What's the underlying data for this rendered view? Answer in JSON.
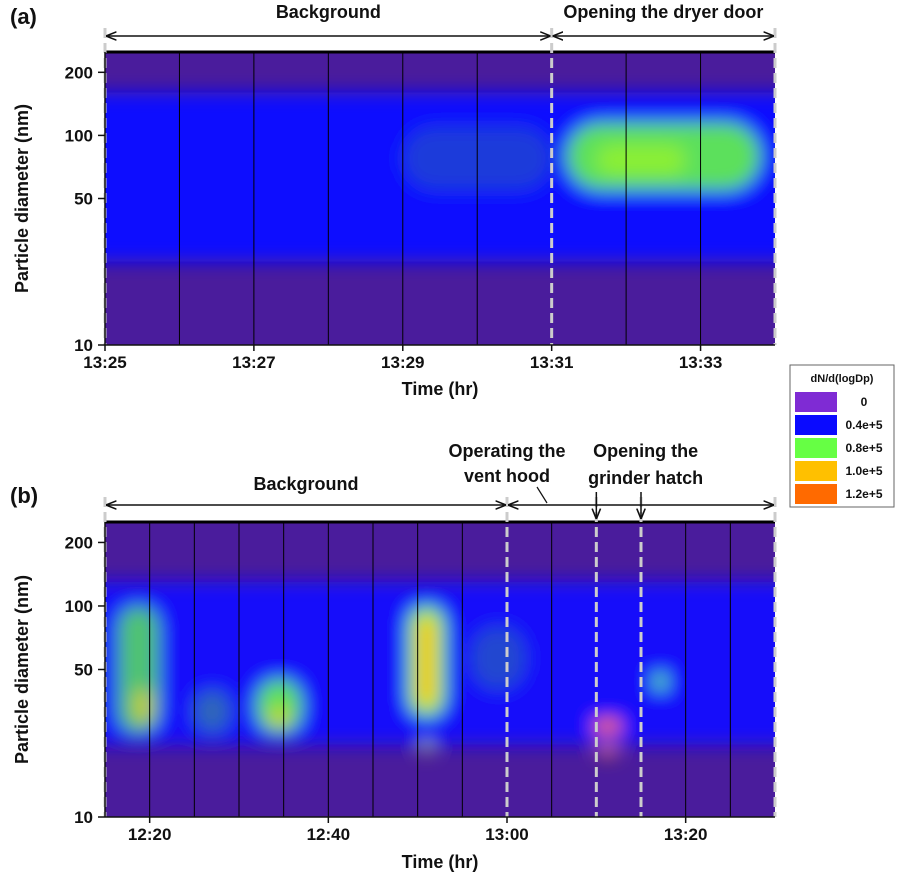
{
  "chart_data": [
    {
      "type": "heatmap",
      "panel": "(a)",
      "xlabel": "Time (hr)",
      "ylabel": "Particle diameter (nm)",
      "xlim": [
        805,
        814
      ],
      "ylim": [
        10,
        250
      ],
      "ylog": true,
      "xticks": [
        {
          "value": 805,
          "label": "13:25"
        },
        {
          "value": 807,
          "label": "13:27"
        },
        {
          "value": 809,
          "label": "13:29"
        },
        {
          "value": 811,
          "label": "13:31"
        },
        {
          "value": 813,
          "label": "13:33"
        }
      ],
      "yticks": [
        10,
        50,
        100,
        200
      ],
      "xgrid": [
        806,
        807,
        808,
        809,
        810,
        812,
        813
      ],
      "markers": [
        805,
        811,
        814
      ],
      "annotations": [
        {
          "lines": [
            "Background"
          ],
          "span": [
            805,
            811
          ]
        },
        {
          "lines": [
            "Opening the dryer door"
          ],
          "span": [
            811,
            814
          ]
        }
      ],
      "regions": [
        {
          "x": [
            805,
            814
          ],
          "y": [
            25,
            160
          ],
          "value": 40000
        },
        {
          "x": [
            809,
            811
          ],
          "y": [
            55,
            110
          ],
          "value": 48000
        },
        {
          "x": [
            811.2,
            813.8
          ],
          "y": [
            55,
            115
          ],
          "value": 75000
        },
        {
          "x": [
            811.6,
            812.8
          ],
          "y": [
            65,
            90
          ],
          "value": 85000
        }
      ]
    },
    {
      "type": "heatmap",
      "panel": "(b)",
      "xlabel": "Time (hr)",
      "ylabel": "Particle diameter (nm)",
      "xlim": [
        735,
        810
      ],
      "ylim": [
        10,
        250
      ],
      "ylog": true,
      "xticks": [
        {
          "value": 740,
          "label": "12:20"
        },
        {
          "value": 760,
          "label": "12:40"
        },
        {
          "value": 780,
          "label": "13:00"
        },
        {
          "value": 800,
          "label": "13:20"
        }
      ],
      "yticks": [
        10,
        50,
        100,
        200
      ],
      "xgrid": [
        740,
        745,
        750,
        755,
        760,
        765,
        770,
        775,
        785,
        800,
        805
      ],
      "markers": [
        735,
        780,
        790,
        795,
        810
      ],
      "annotations": [
        {
          "lines": [
            "Background"
          ],
          "span": [
            735,
            780
          ]
        },
        {
          "lines": [
            "Operating the",
            "vent hood"
          ],
          "span": [
            780,
            810
          ]
        },
        {
          "lines": [
            "Opening the",
            "grinder hatch"
          ],
          "pointers": [
            790,
            795
          ]
        }
      ],
      "regions": [
        {
          "x": [
            735,
            810
          ],
          "y": [
            22,
            130
          ],
          "value": 35000
        },
        {
          "x": [
            745,
            749
          ],
          "y": [
            25,
            40
          ],
          "value": 55000
        },
        {
          "x": [
            776,
            782
          ],
          "y": [
            40,
            80
          ],
          "value": 50000
        },
        {
          "x": [
            736.5,
            741
          ],
          "y": [
            25,
            100
          ],
          "value": 70000
        },
        {
          "x": [
            738.5,
            740
          ],
          "y": [
            28,
            40
          ],
          "value": 95000
        },
        {
          "x": [
            752,
            757
          ],
          "y": [
            25,
            45
          ],
          "value": 75000
        },
        {
          "x": [
            753.5,
            755.5
          ],
          "y": [
            27,
            33
          ],
          "value": 95000
        },
        {
          "x": [
            769,
            773
          ],
          "y": [
            30,
            100
          ],
          "value": 80000
        },
        {
          "x": [
            770,
            772
          ],
          "y": [
            33,
            90
          ],
          "value": 100000
        },
        {
          "x": [
            770.5,
            771.5
          ],
          "y": [
            20,
            23
          ],
          "value": 90000
        },
        {
          "x": [
            789.7,
            792.8
          ],
          "y": [
            25,
            29
          ],
          "value": 120000
        },
        {
          "x": [
            790.2,
            792.3
          ],
          "y": [
            19.5,
            21.5
          ],
          "value": 115000
        },
        {
          "x": [
            796.5,
            797.8
          ],
          "y": [
            40,
            48
          ],
          "value": 80000
        }
      ]
    }
  ],
  "color_scale": {
    "title": "dN/d(logDp)",
    "entries": [
      {
        "value": 0,
        "label": "0",
        "color": "#7f2bd4"
      },
      {
        "value": 40000,
        "label": "0.4e+5",
        "color": "#0a0aff"
      },
      {
        "value": 80000,
        "label": "0.8e+5",
        "color": "#66ff44"
      },
      {
        "value": 100000,
        "label": "1.0e+5",
        "color": "#ffc000"
      },
      {
        "value": 120000,
        "label": "1.2e+5",
        "color": "#ff6a00"
      }
    ]
  }
}
